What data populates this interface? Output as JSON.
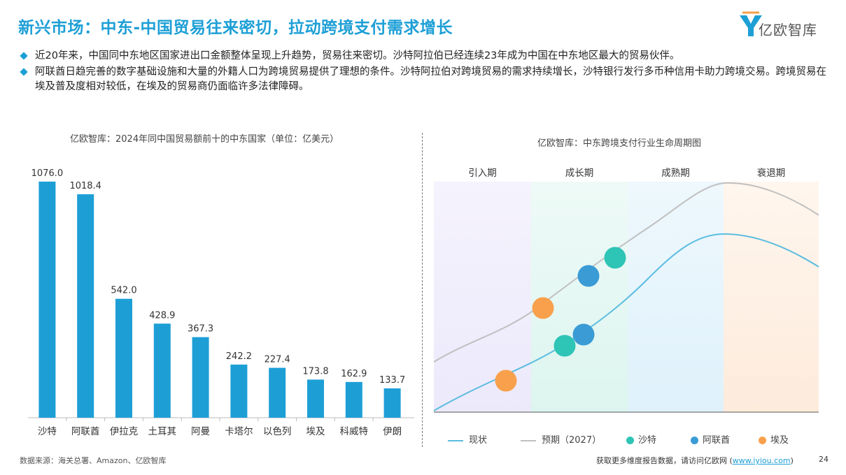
{
  "title": "新兴市场：中东-中国贸易往来密切，拉动跨境支付需求增长",
  "logo_text": "亿欧智库",
  "bullets": [
    "近20年来，中国同中东地区国家进出口金额整体呈现上升趋势，贸易往来密切。沙特阿拉伯已经连续23年成为中国在中东地区最大的贸易伙伴。",
    "阿联酋日趋完善的数字基础设施和大量的外籍人口为跨境贸易提供了理想的条件。沙特阿拉伯对跨境贸易的需求持续增长，沙特银行发行多币种信用卡助力跨境交易。跨境贸易在埃及普及度相对较低，在埃及的贸易商仍面临许多法律障碍。"
  ],
  "colors": {
    "accent": "#1d9fd6",
    "bar": "#1d9fd6",
    "current_line": "#5bbde0",
    "forecast_line": "#c0c0c0",
    "saudi": "#2ec4b6",
    "uae": "#3a9bd5",
    "egypt": "#f8a04b"
  },
  "chart_data": [
    {
      "type": "bar",
      "title": "亿欧智库：2024年同中国贸易额前十的中东国家（单位：亿美元）",
      "categories": [
        "沙特",
        "阿联酋",
        "伊拉克",
        "土耳其",
        "阿曼",
        "卡塔尔",
        "以色列",
        "埃及",
        "科威特",
        "伊朗"
      ],
      "values": [
        1076.0,
        1018.4,
        542.0,
        428.9,
        367.3,
        242.2,
        227.4,
        173.8,
        162.9,
        133.7
      ],
      "value_labels": [
        "1076.0",
        "1018.4",
        "542.0",
        "428.9",
        "367.3",
        "242.2",
        "227.4",
        "173.8",
        "162.9",
        "133.7"
      ],
      "ylim": [
        0,
        1100
      ]
    },
    {
      "type": "line",
      "title": "亿欧智库：中东跨境支付行业生命周期图",
      "phases": [
        "引入期",
        "成长期",
        "成熟期",
        "衰退期"
      ],
      "series": [
        {
          "name": "现状",
          "style": "solid"
        },
        {
          "name": "预期（2027）",
          "style": "solid"
        }
      ],
      "markers": [
        {
          "name": "沙特"
        },
        {
          "name": "阿联酋"
        },
        {
          "name": "埃及"
        }
      ]
    }
  ],
  "footer": {
    "source": "数据来源：海关总署、Amazon、亿欧智库",
    "cta_prefix": "获取更多维度报告数据，请访问亿欧网 (",
    "cta_link": "www.iyiou.com",
    "cta_suffix": ")",
    "page": "24"
  }
}
